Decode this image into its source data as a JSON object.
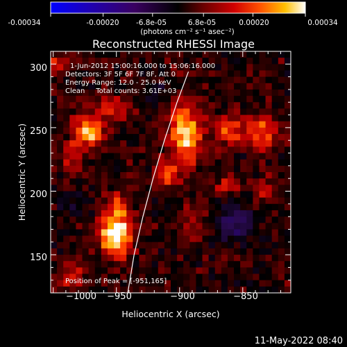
{
  "colorbar": {
    "ticks": [
      "-0.00034",
      "-0.00020",
      "-6.8e-05",
      "6.8e-05",
      "0.00020",
      "0.00034"
    ],
    "unit_label": "(photons cm⁻² s⁻¹ asec⁻²)",
    "range": [
      -0.00034,
      0.00034
    ]
  },
  "info": {
    "time": "1-Jun-2012 15:00:16.000 to 15:06:16.000",
    "detectors": "Detectors: 3F 5F 6F 7F 8F, Att 0",
    "energy": "Energy Range: 12.0 - 25.0 keV",
    "clean": "Clean     Total counts: 3.61E+03",
    "peak": "Position of Peak = [-951,165]"
  },
  "footer": {
    "timestamp": "11-May-2022 08:40"
  },
  "chart_data": {
    "type": "heatmap",
    "title": "Reconstructed RHESSI Image",
    "xlabel": "Heliocentric X (arcsec)",
    "ylabel": "Heliocentric Y (arcsec)",
    "xlim": [
      -1002,
      -812
    ],
    "ylim": [
      120,
      310
    ],
    "xticks": [
      -1000,
      -950,
      -900,
      -850
    ],
    "yticks": [
      150,
      200,
      250,
      300
    ],
    "xtick_labels": [
      "−1000",
      "−950",
      "−900",
      "−850"
    ],
    "ytick_labels": [
      "150",
      "200",
      "250",
      "300"
    ],
    "peak": {
      "x": -951,
      "y": 165
    },
    "colormap": [
      "#0000ff",
      "#200080",
      "#2a0a50",
      "#000000",
      "#500000",
      "#c80000",
      "#ff4000",
      "#ffb000",
      "#ffffff"
    ],
    "blobs": [
      {
        "x": -951,
        "y": 165,
        "sx": 9,
        "sy": 11,
        "amp": 1.0
      },
      {
        "x": -948,
        "y": 186,
        "sx": 6,
        "sy": 8,
        "amp": 0.45
      },
      {
        "x": -971,
        "y": 248,
        "sx": 8,
        "sy": 8,
        "amp": 0.8
      },
      {
        "x": -953,
        "y": 265,
        "sx": 10,
        "sy": 6,
        "amp": 0.45
      },
      {
        "x": -984,
        "y": 228,
        "sx": 6,
        "sy": 10,
        "amp": 0.4
      },
      {
        "x": -895,
        "y": 247,
        "sx": 9,
        "sy": 16,
        "amp": 0.85
      },
      {
        "x": -910,
        "y": 214,
        "sx": 7,
        "sy": 7,
        "amp": 0.5
      },
      {
        "x": -862,
        "y": 248,
        "sx": 8,
        "sy": 8,
        "amp": 0.55
      },
      {
        "x": -835,
        "y": 245,
        "sx": 8,
        "sy": 9,
        "amp": 0.6
      },
      {
        "x": -862,
        "y": 205,
        "sx": 6,
        "sy": 6,
        "amp": 0.35
      },
      {
        "x": -833,
        "y": 200,
        "sx": 6,
        "sy": 7,
        "amp": 0.35
      },
      {
        "x": -998,
        "y": 300,
        "sx": 5,
        "sy": 6,
        "amp": 0.45
      },
      {
        "x": -985,
        "y": 135,
        "sx": 8,
        "sy": 8,
        "amp": 0.4
      },
      {
        "x": -893,
        "y": 170,
        "sx": 6,
        "sy": 10,
        "amp": 0.3
      },
      {
        "x": -855,
        "y": 175,
        "sx": 9,
        "sy": 10,
        "amp": -0.55
      },
      {
        "x": -920,
        "y": 278,
        "sx": 8,
        "sy": 6,
        "amp": -0.25
      },
      {
        "x": -985,
        "y": 190,
        "sx": 9,
        "sy": 8,
        "amp": -0.2
      }
    ],
    "limb": [
      {
        "x": -941,
        "y": 120
      },
      {
        "x": -936,
        "y": 150
      },
      {
        "x": -929,
        "y": 180
      },
      {
        "x": -921,
        "y": 210
      },
      {
        "x": -912,
        "y": 240
      },
      {
        "x": -902,
        "y": 270
      },
      {
        "x": -893,
        "y": 294
      }
    ]
  }
}
